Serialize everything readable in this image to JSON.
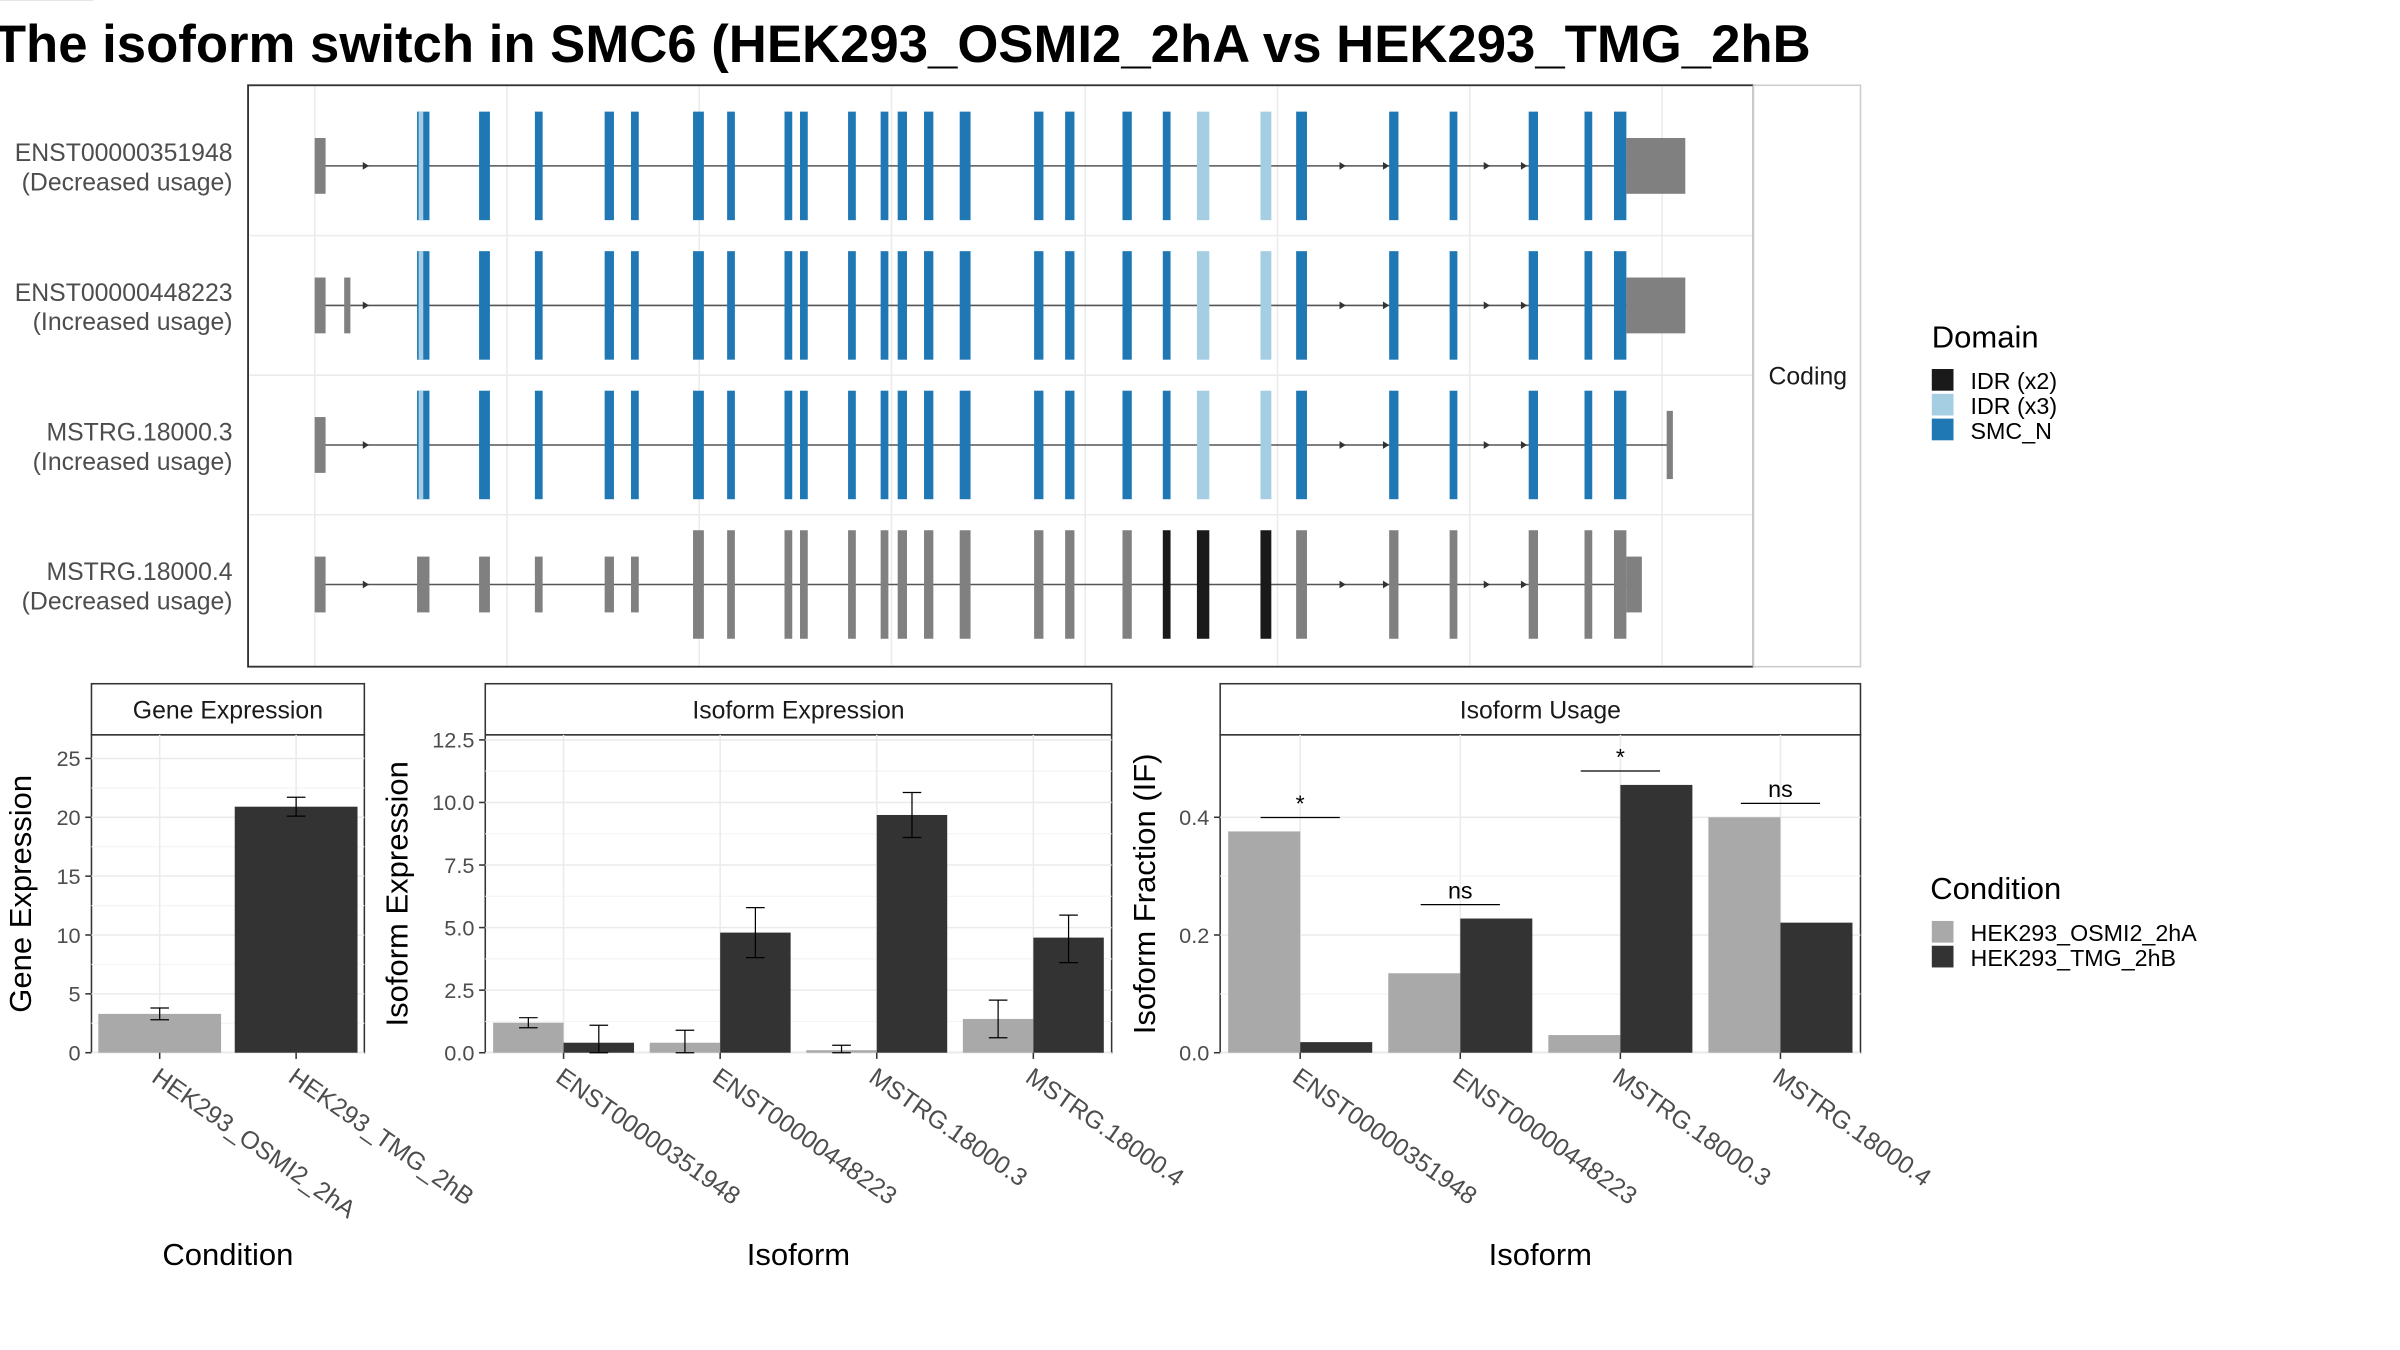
{
  "title": "The isoform switch in SMC6 (HEK293_OSMI2_2hA vs HEK293_TMG_2hB",
  "colors": {
    "smc_n": "#1f78b4",
    "idr_x3": "#a6cee3",
    "idr_x2": "#1a1a1a",
    "noncoding": "#808080",
    "cond_a": "#a9a9a9",
    "cond_b": "#333333"
  },
  "structure": {
    "strip_label": "Coding",
    "isoforms": [
      {
        "id": "ENST00000351948",
        "usage": "(Decreased usage)"
      },
      {
        "id": "ENST00000448223",
        "usage": "(Increased usage)"
      },
      {
        "id": "MSTRG.18000.3",
        "usage": "(Increased usage)"
      },
      {
        "id": "MSTRG.18000.4",
        "usage": "(Decreased usage)"
      }
    ]
  },
  "domain_legend": {
    "title": "Domain",
    "items": [
      {
        "label": "IDR (x2)",
        "color": "#1a1a1a"
      },
      {
        "label": "IDR (x3)",
        "color": "#a6cee3"
      },
      {
        "label": "SMC_N",
        "color": "#1f78b4"
      }
    ]
  },
  "condition_legend": {
    "title": "Condition",
    "items": [
      {
        "label": "HEK293_OSMI2_2hA",
        "color": "#a9a9a9"
      },
      {
        "label": "HEK293_TMG_2hB",
        "color": "#333333"
      }
    ]
  },
  "chart_data": [
    {
      "type": "bar",
      "title": "Gene Expression",
      "xlabel": "Condition",
      "ylabel": "Gene Expression",
      "ylim": [
        0,
        27
      ],
      "yticks": [
        0,
        5,
        10,
        15,
        20,
        25
      ],
      "ytick_labels": [
        "0",
        "5",
        "10",
        "15",
        "20",
        "25"
      ],
      "categories": [
        "HEK293_OSMI2_2hA",
        "HEK293_TMG_2hB"
      ],
      "values": [
        3.3,
        20.9
      ],
      "error_low": [
        2.8,
        20.1
      ],
      "error_high": [
        3.8,
        21.7
      ]
    },
    {
      "type": "bar",
      "title": "Isoform Expression",
      "xlabel": "Isoform",
      "ylabel": "Isoform Expression",
      "ylim": [
        0,
        12.7
      ],
      "yticks": [
        0,
        2.5,
        5,
        7.5,
        10,
        12.5
      ],
      "ytick_labels": [
        "0.0",
        "2.5",
        "5.0",
        "7.5",
        "10.0",
        "12.5"
      ],
      "categories": [
        "ENST00000351948",
        "ENST00000448223",
        "MSTRG.18000.3",
        "MSTRG.18000.4"
      ],
      "series": [
        {
          "name": "HEK293_OSMI2_2hA",
          "values": [
            1.2,
            0.4,
            0.1,
            1.35
          ],
          "error_low": [
            1.0,
            0.0,
            0.0,
            0.6
          ],
          "error_high": [
            1.4,
            0.9,
            0.3,
            2.1
          ]
        },
        {
          "name": "HEK293_TMG_2hB",
          "values": [
            0.4,
            4.8,
            9.5,
            4.6
          ],
          "error_low": [
            0.0,
            3.8,
            8.6,
            3.6
          ],
          "error_high": [
            1.1,
            5.8,
            10.4,
            5.5
          ]
        }
      ]
    },
    {
      "type": "bar",
      "title": "Isoform Usage",
      "xlabel": "Isoform",
      "ylabel": "Isoform Fraction (IF)",
      "ylim": [
        0,
        0.54
      ],
      "yticks": [
        0,
        0.2,
        0.4
      ],
      "ytick_labels": [
        "0.0",
        "0.2",
        "0.4"
      ],
      "categories": [
        "ENST00000351948",
        "ENST00000448223",
        "MSTRG.18000.3",
        "MSTRG.18000.4"
      ],
      "series": [
        {
          "name": "HEK293_OSMI2_2hA",
          "values": [
            0.376,
            0.135,
            0.03,
            0.4
          ]
        },
        {
          "name": "HEK293_TMG_2hB",
          "values": [
            0.018,
            0.228,
            0.455,
            0.221
          ]
        }
      ],
      "significance": [
        "*",
        "ns",
        "*",
        "ns"
      ]
    }
  ]
}
